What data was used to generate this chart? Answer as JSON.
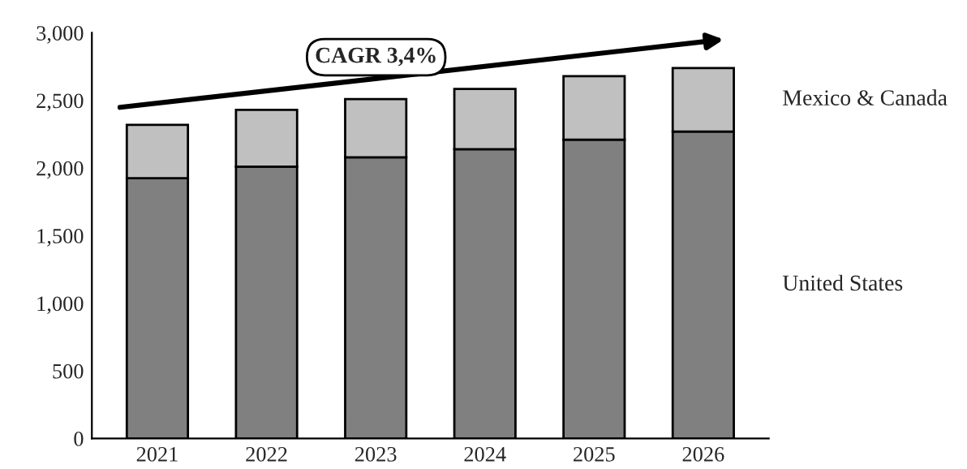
{
  "chart_data": {
    "type": "bar",
    "stacked": true,
    "categories": [
      "2021",
      "2022",
      "2023",
      "2024",
      "2025",
      "2026"
    ],
    "series": [
      {
        "name": "United States",
        "color": "#808080",
        "values": [
          1925,
          2010,
          2080,
          2140,
          2210,
          2270
        ]
      },
      {
        "name": "Mexico & Canada",
        "color": "#c0c0c0",
        "values": [
          395,
          420,
          430,
          445,
          470,
          470
        ]
      }
    ],
    "ylim": [
      0,
      3000
    ],
    "yticks": [
      {
        "value": 0,
        "label": "0"
      },
      {
        "value": 500,
        "label": "500"
      },
      {
        "value": 1000,
        "label": "1,000"
      },
      {
        "value": 1500,
        "label": "1,500"
      },
      {
        "value": 2000,
        "label": "2,000"
      },
      {
        "value": 2500,
        "label": "2,500"
      },
      {
        "value": 3000,
        "label": "3,000"
      }
    ],
    "grid": false,
    "legend": false,
    "annotations": [
      "CAGR 3,4%"
    ]
  }
}
